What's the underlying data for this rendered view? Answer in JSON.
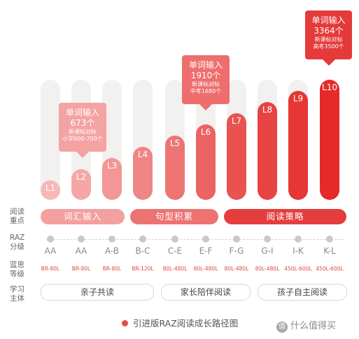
{
  "chart_data": {
    "type": "bar",
    "title": "引进版RAZ阅读成长路径图",
    "categories": [
      "L1",
      "L2",
      "L3",
      "L4",
      "L5",
      "L6",
      "L7",
      "L8",
      "L9",
      "L10"
    ],
    "values": [
      1,
      2,
      3,
      4,
      5,
      6,
      7,
      8,
      9,
      10
    ],
    "colors": [
      "#f7b8b8",
      "#f5a7a7",
      "#f29696",
      "#f08585",
      "#ee7474",
      "#ec6363",
      "#ea5252",
      "#e84343",
      "#e63636",
      "#e42a2a"
    ],
    "callouts": [
      {
        "bar": "L2",
        "line1": "单词输入",
        "line2": "673个",
        "line3": "新课标对标",
        "line4": "小学600-700个",
        "color": "#f4a3a3"
      },
      {
        "bar": "L6",
        "line1": "单词输入",
        "line2": "1910个",
        "line3": "新课标对标",
        "line4": "中考1680个",
        "color": "#ee6e6e"
      },
      {
        "bar": "L10",
        "line1": "单词输入",
        "line2": "3364个",
        "line3": "新课标对标",
        "line4": "高考3500个",
        "color": "#e43a3a"
      }
    ],
    "rows": {
      "focus": {
        "label": "阅读\n重点",
        "items": [
          {
            "text": "词汇输入",
            "color": "#f3a0a0"
          },
          {
            "text": "句型积累",
            "color": "#ed7373"
          },
          {
            "text": "阅读策略",
            "color": "#e53d3d"
          }
        ]
      },
      "raz": {
        "label": "RAZ\n分级",
        "values": [
          "AA",
          "AA",
          "A-B",
          "B-C",
          "C-E",
          "E-F",
          "F-G",
          "G-I",
          "I-K",
          "K-L"
        ]
      },
      "lexile": {
        "label": "蓝思\n等级",
        "values": [
          "BR-80L",
          "BR-80L",
          "BR-80L",
          "BR-120L",
          "80L-480L",
          "80L-480L",
          "80L-480L",
          "80L-480L",
          "450L-600L",
          "450L-600L"
        ]
      },
      "mode": {
        "label": "学习\n主体",
        "items": [
          "亲子共读",
          "家长陪伴阅读",
          "孩子自主阅读"
        ]
      }
    },
    "legend": "引进版RAZ阅读成长路径图"
  },
  "watermark": "值 什么值得买"
}
